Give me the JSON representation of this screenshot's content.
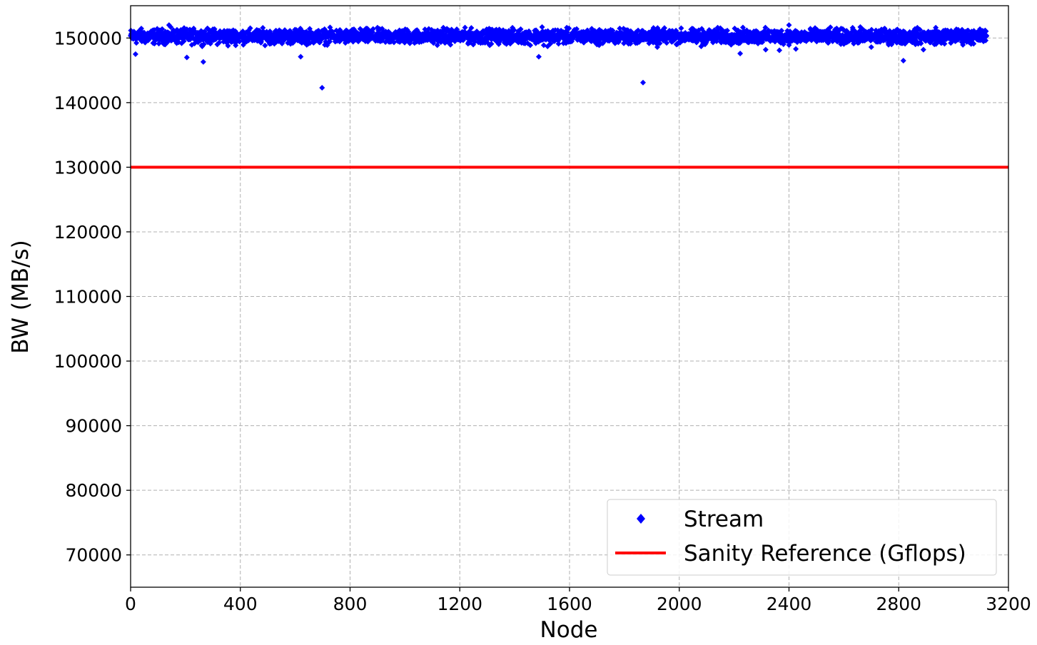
{
  "chart_data": {
    "type": "scatter",
    "title": "",
    "xlabel": "Node",
    "ylabel": "BW (MB/s)",
    "xlim": [
      0,
      3200
    ],
    "ylim": [
      65000,
      155000
    ],
    "xticks": [
      0,
      400,
      800,
      1200,
      1600,
      2000,
      2400,
      2800,
      3200
    ],
    "xtick_labels": [
      "0",
      "400",
      "800",
      "1200",
      "1600",
      "2000",
      "2400",
      "2800",
      "3200"
    ],
    "yticks": [
      70000,
      80000,
      90000,
      100000,
      110000,
      120000,
      130000,
      140000,
      150000
    ],
    "ytick_labels": [
      "70000",
      "80000",
      "90000",
      "100000",
      "110000",
      "120000",
      "130000",
      "140000",
      "150000"
    ],
    "grid": true,
    "legend_position": "lower-right",
    "series": [
      {
        "name": "Stream",
        "kind": "scatter",
        "marker": "diamond",
        "color": "#0000ff",
        "x_range": [
          0,
          3120
        ],
        "typical_range": [
          149000,
          151500
        ],
        "points": [
          {
            "x": 18,
            "y": 147500
          },
          {
            "x": 140,
            "y": 152000
          },
          {
            "x": 205,
            "y": 147000
          },
          {
            "x": 265,
            "y": 146300
          },
          {
            "x": 355,
            "y": 148800
          },
          {
            "x": 620,
            "y": 147100
          },
          {
            "x": 698,
            "y": 142300
          },
          {
            "x": 1140,
            "y": 151600
          },
          {
            "x": 1488,
            "y": 147100
          },
          {
            "x": 1500,
            "y": 151700
          },
          {
            "x": 1520,
            "y": 148700
          },
          {
            "x": 1700,
            "y": 149000
          },
          {
            "x": 1815,
            "y": 149100
          },
          {
            "x": 1868,
            "y": 143100
          },
          {
            "x": 1920,
            "y": 148600
          },
          {
            "x": 2080,
            "y": 148700
          },
          {
            "x": 2140,
            "y": 151600
          },
          {
            "x": 2222,
            "y": 147600
          },
          {
            "x": 2315,
            "y": 148200
          },
          {
            "x": 2365,
            "y": 148100
          },
          {
            "x": 2400,
            "y": 152000
          },
          {
            "x": 2425,
            "y": 148300
          },
          {
            "x": 2660,
            "y": 151700
          },
          {
            "x": 2700,
            "y": 148600
          },
          {
            "x": 2817,
            "y": 146500
          },
          {
            "x": 2890,
            "y": 148200
          },
          {
            "x": 2935,
            "y": 151600
          }
        ]
      },
      {
        "name": "Sanity Reference (Gflops)",
        "kind": "line",
        "color": "#ff0000",
        "x": [
          0,
          3200
        ],
        "y": [
          130000,
          130000
        ]
      }
    ]
  }
}
